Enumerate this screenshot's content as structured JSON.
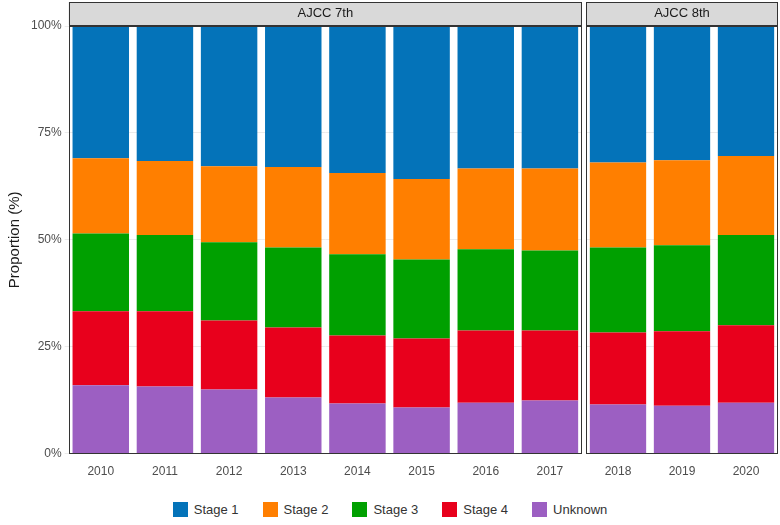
{
  "chart_data": [
    {
      "type": "bar",
      "title": "AJCC 7th",
      "y_label": "Proportion (%)",
      "stacked": true,
      "grid": true,
      "legend": "bottom",
      "categories": [
        "2010",
        "2011",
        "2012",
        "2013",
        "2014",
        "2015",
        "2016",
        "2017"
      ],
      "series": [
        {
          "name": "Stage 1",
          "color": "#0473b9",
          "values": [
            30.9,
            31.6,
            32.8,
            33.0,
            34.4,
            35.8,
            33.3,
            33.3
          ]
        },
        {
          "name": "Stage 2",
          "color": "#ff7f00",
          "values": [
            17.6,
            17.3,
            17.8,
            18.8,
            19.0,
            18.8,
            18.9,
            19.2
          ]
        },
        {
          "name": "Stage 3",
          "color": "#00a000",
          "values": [
            18.2,
            17.8,
            18.3,
            18.7,
            19.0,
            18.5,
            19.0,
            18.7
          ]
        },
        {
          "name": "Stage 4",
          "color": "#e8001c",
          "values": [
            17.3,
            17.6,
            16.1,
            16.4,
            15.9,
            16.1,
            16.9,
            16.4
          ]
        },
        {
          "name": "Unknown",
          "color": "#9c5fc2",
          "values": [
            16.0,
            15.7,
            15.0,
            13.1,
            11.7,
            10.8,
            11.9,
            12.4
          ]
        }
      ],
      "ylim": [
        0,
        100
      ],
      "yticks": [
        {
          "value": 0,
          "label": "0%"
        },
        {
          "value": 25,
          "label": "25%"
        },
        {
          "value": 50,
          "label": "50%"
        },
        {
          "value": 75,
          "label": "75%"
        },
        {
          "value": 100,
          "label": "100%"
        }
      ]
    },
    {
      "type": "bar",
      "title": "AJCC 8th",
      "stacked": true,
      "grid": true,
      "tick_labels": "x",
      "categories": [
        "2018",
        "2019",
        "2020"
      ],
      "series": [
        {
          "name": "Stage 1",
          "color": "#0473b9",
          "values": [
            31.9,
            31.4,
            30.4
          ]
        },
        {
          "name": "Stage 2",
          "color": "#ff7f00",
          "values": [
            19.9,
            19.9,
            18.5
          ]
        },
        {
          "name": "Stage 3",
          "color": "#00a000",
          "values": [
            19.9,
            20.1,
            21.1
          ]
        },
        {
          "name": "Stage 4",
          "color": "#e8001c",
          "values": [
            16.8,
            17.4,
            18.1
          ]
        },
        {
          "name": "Unknown",
          "color": "#9c5fc2",
          "values": [
            11.5,
            11.2,
            11.9
          ]
        }
      ],
      "ylim": [
        0,
        100
      ],
      "yticks": [
        0,
        25,
        50,
        75,
        100
      ]
    }
  ]
}
